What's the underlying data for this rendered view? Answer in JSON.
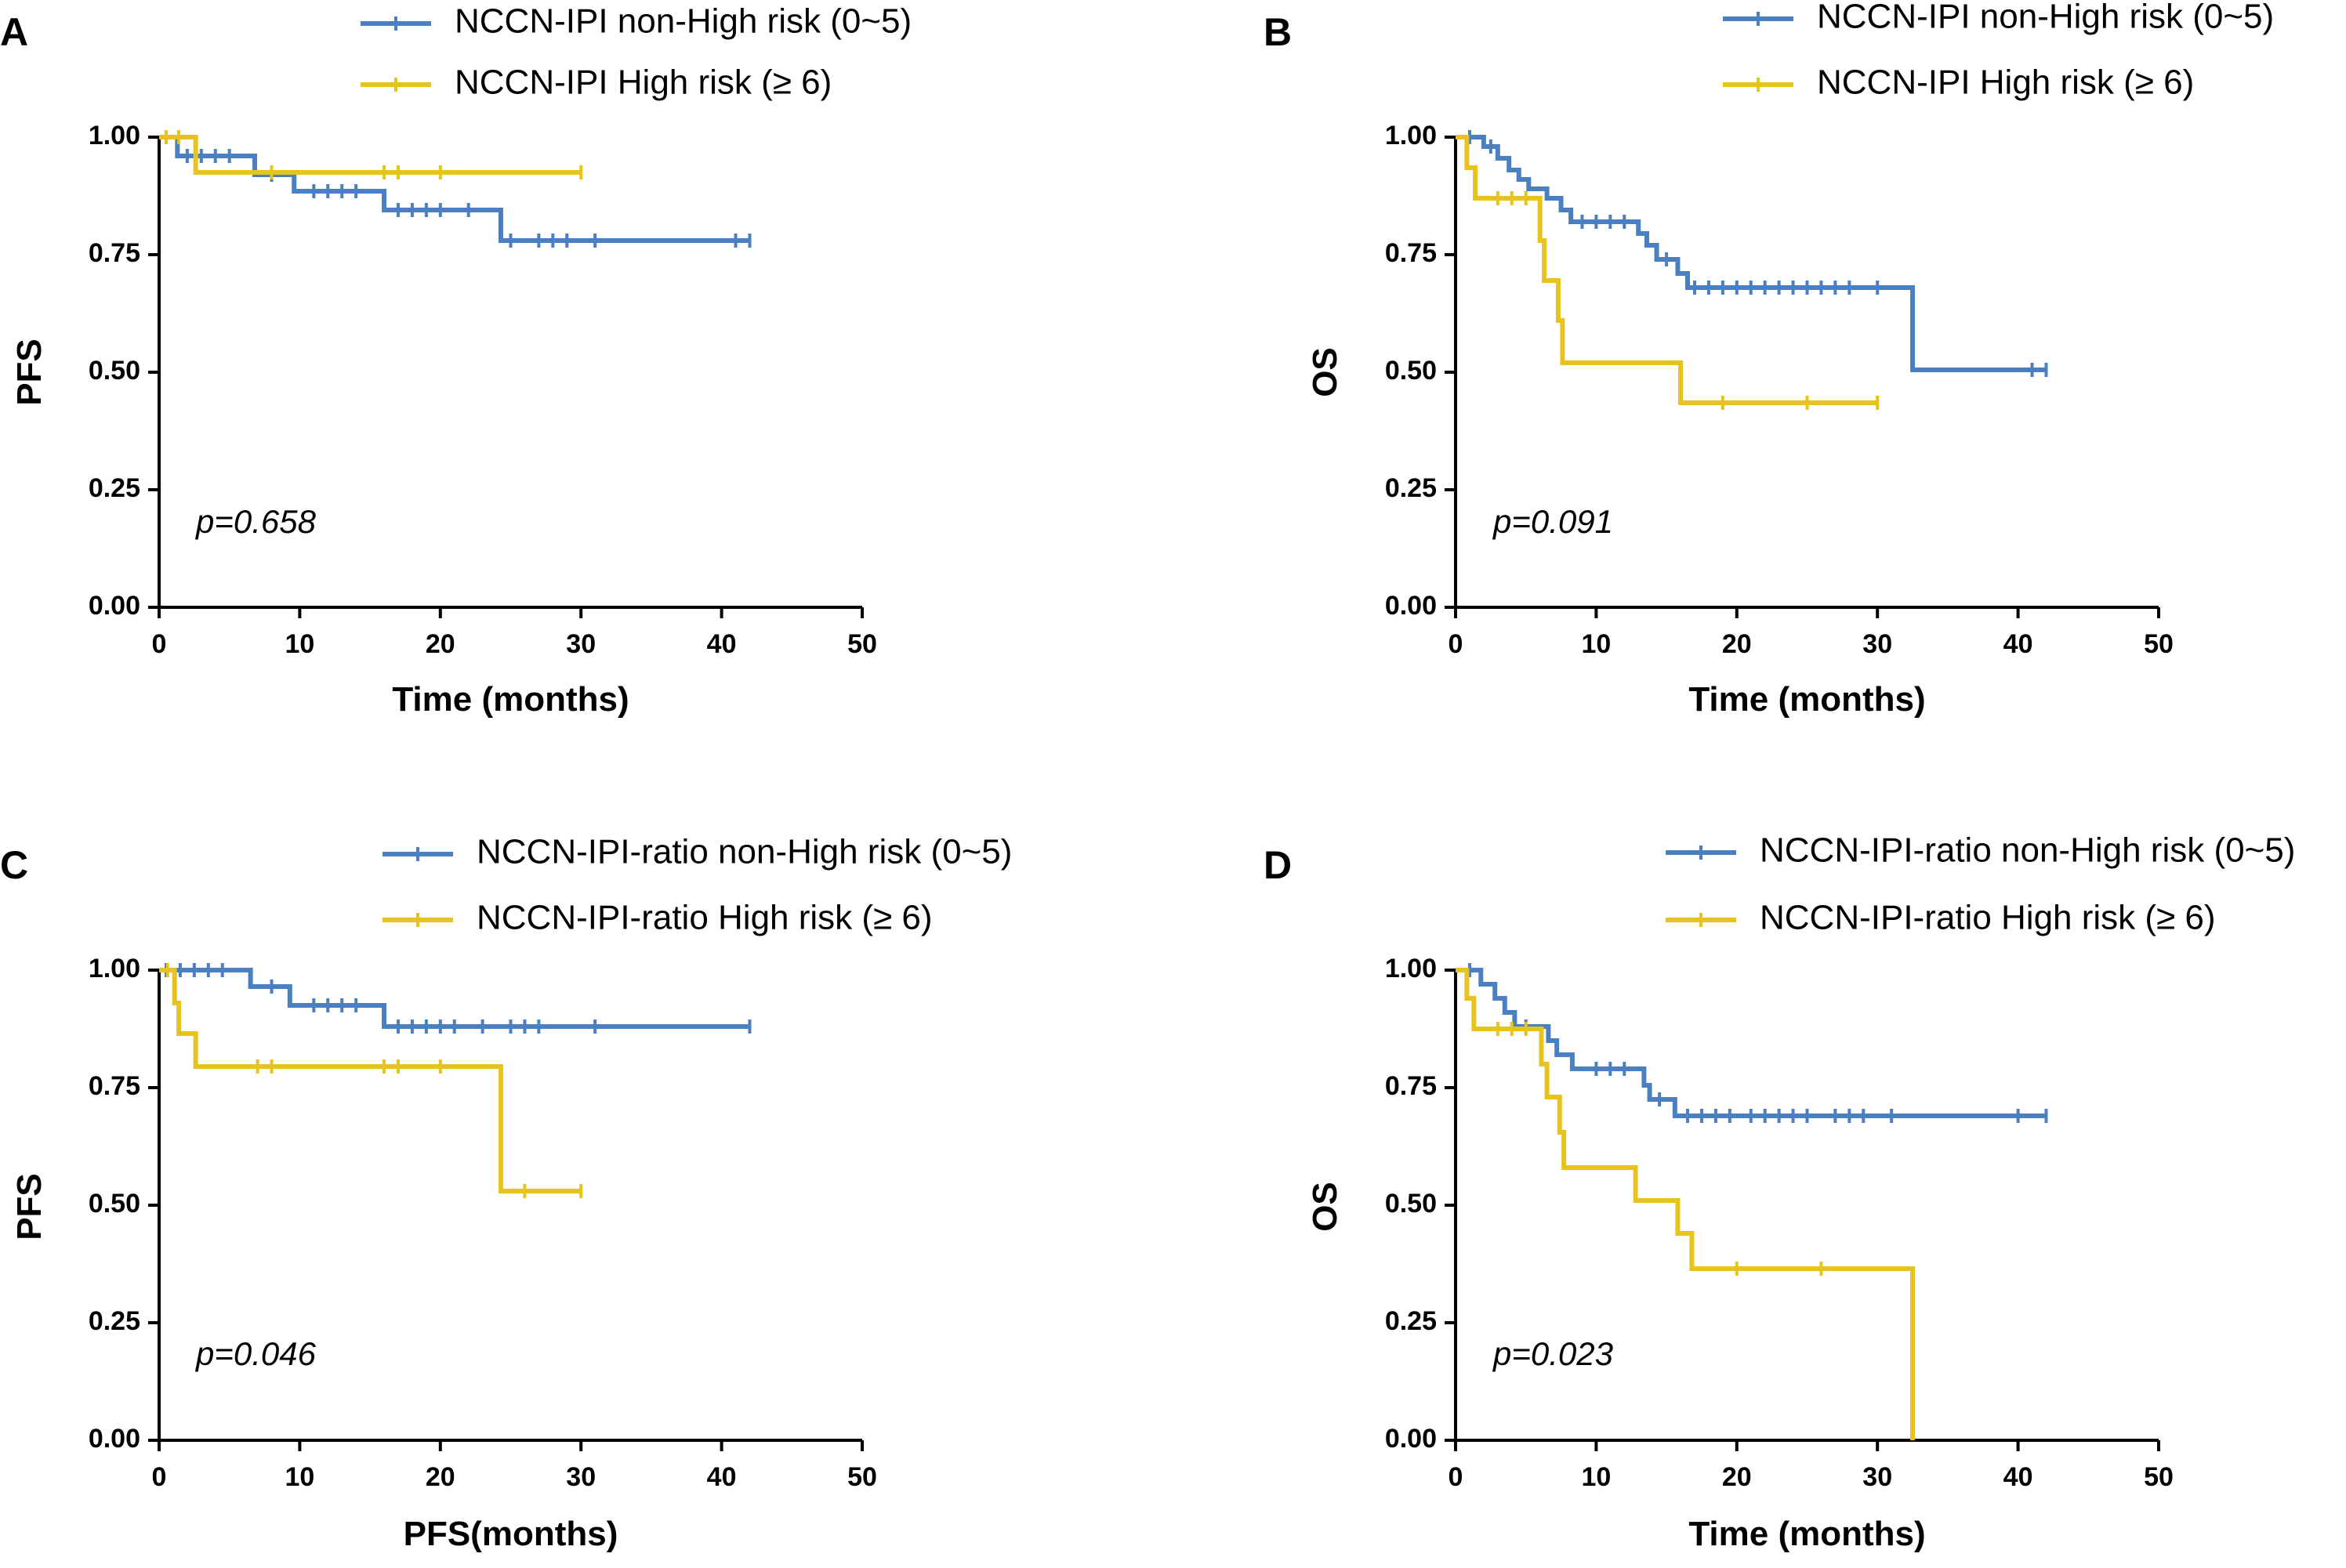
{
  "colors": {
    "blue": "#4a7fc1",
    "yellow": "#e8c21d",
    "axis": "#000000"
  },
  "chart_data": [
    {
      "type": "line",
      "panel": "A",
      "xlabel": "Time (months)",
      "ylabel": "PFS",
      "xlim": [
        0,
        50
      ],
      "ylim": [
        0,
        1
      ],
      "xticks": [
        "0",
        "10",
        "20",
        "30",
        "40",
        "50"
      ],
      "yticks": [
        "0.00",
        "0.25",
        "0.50",
        "0.75",
        "1.00"
      ],
      "pvalue": "p=0.658",
      "series": [
        {
          "name": "NCCN-IPI non-High risk (0~5)",
          "color": "blue",
          "steps": [
            [
              0,
              1.0
            ],
            [
              1.3,
              0.96
            ],
            [
              6.8,
              0.92
            ],
            [
              9.6,
              0.885
            ],
            [
              16,
              0.845
            ],
            [
              24.3,
              0.78
            ],
            [
              42,
              0.78
            ]
          ],
          "censors": [
            [
              0.5,
              1.0
            ],
            [
              2,
              0.96
            ],
            [
              3,
              0.96
            ],
            [
              4,
              0.96
            ],
            [
              5,
              0.96
            ],
            [
              8,
              0.92
            ],
            [
              11,
              0.885
            ],
            [
              12,
              0.885
            ],
            [
              13,
              0.885
            ],
            [
              14,
              0.885
            ],
            [
              17,
              0.845
            ],
            [
              18,
              0.845
            ],
            [
              19,
              0.845
            ],
            [
              20,
              0.845
            ],
            [
              22,
              0.845
            ],
            [
              25,
              0.78
            ],
            [
              27,
              0.78
            ],
            [
              28,
              0.78
            ],
            [
              29,
              0.78
            ],
            [
              31,
              0.78
            ],
            [
              41,
              0.78
            ],
            [
              42,
              0.78
            ]
          ]
        },
        {
          "name": "NCCN-IPI High risk (≥ 6)",
          "color": "yellow",
          "steps": [
            [
              0,
              1.0
            ],
            [
              2.6,
              0.925
            ],
            [
              30,
              0.925
            ]
          ],
          "censors": [
            [
              0.5,
              1.0
            ],
            [
              1.4,
              1.0
            ],
            [
              8,
              0.925
            ],
            [
              16,
              0.925
            ],
            [
              17,
              0.925
            ],
            [
              20,
              0.925
            ],
            [
              30,
              0.925
            ]
          ]
        }
      ]
    },
    {
      "type": "line",
      "panel": "B",
      "xlabel": "Time (months)",
      "ylabel": "OS",
      "xlim": [
        0,
        50
      ],
      "ylim": [
        0,
        1
      ],
      "xticks": [
        "0",
        "10",
        "20",
        "30",
        "40",
        "50"
      ],
      "yticks": [
        "0.00",
        "0.25",
        "0.50",
        "0.75",
        "1.00"
      ],
      "pvalue": "p=0.091",
      "series": [
        {
          "name": "NCCN-IPI non-High risk (0~5)",
          "color": "blue",
          "steps": [
            [
              0,
              1.0
            ],
            [
              2,
              0.98
            ],
            [
              3,
              0.955
            ],
            [
              3.8,
              0.93
            ],
            [
              4.5,
              0.91
            ],
            [
              5.2,
              0.89
            ],
            [
              6.5,
              0.87
            ],
            [
              7.5,
              0.845
            ],
            [
              8.2,
              0.82
            ],
            [
              13,
              0.795
            ],
            [
              13.6,
              0.77
            ],
            [
              14.3,
              0.74
            ],
            [
              15.8,
              0.71
            ],
            [
              16.5,
              0.68
            ],
            [
              32.5,
              0.505
            ],
            [
              42,
              0.505
            ]
          ],
          "censors": [
            [
              1,
              1.0
            ],
            [
              2.5,
              0.98
            ],
            [
              9,
              0.82
            ],
            [
              10,
              0.82
            ],
            [
              11,
              0.82
            ],
            [
              12,
              0.82
            ],
            [
              15,
              0.74
            ],
            [
              17,
              0.68
            ],
            [
              18,
              0.68
            ],
            [
              19,
              0.68
            ],
            [
              20,
              0.68
            ],
            [
              21,
              0.68
            ],
            [
              22,
              0.68
            ],
            [
              23,
              0.68
            ],
            [
              24,
              0.68
            ],
            [
              25,
              0.68
            ],
            [
              26,
              0.68
            ],
            [
              27,
              0.68
            ],
            [
              28,
              0.68
            ],
            [
              30,
              0.68
            ],
            [
              41,
              0.505
            ],
            [
              42,
              0.505
            ]
          ]
        },
        {
          "name": "NCCN-IPI High risk (≥ 6)",
          "color": "yellow",
          "steps": [
            [
              0,
              1.0
            ],
            [
              0.8,
              0.935
            ],
            [
              1.4,
              0.87
            ],
            [
              6,
              0.78
            ],
            [
              6.3,
              0.695
            ],
            [
              7.3,
              0.61
            ],
            [
              7.6,
              0.52
            ],
            [
              16,
              0.435
            ],
            [
              30,
              0.435
            ]
          ],
          "censors": [
            [
              3,
              0.87
            ],
            [
              4,
              0.87
            ],
            [
              5,
              0.87
            ],
            [
              19,
              0.435
            ],
            [
              25,
              0.435
            ],
            [
              30,
              0.435
            ]
          ]
        }
      ]
    },
    {
      "type": "line",
      "panel": "C",
      "xlabel": "PFS(months)",
      "ylabel": "PFS",
      "xlim": [
        0,
        50
      ],
      "ylim": [
        0,
        1
      ],
      "xticks": [
        "0",
        "10",
        "20",
        "30",
        "40",
        "50"
      ],
      "yticks": [
        "0.00",
        "0.25",
        "0.50",
        "0.75",
        "1.00"
      ],
      "pvalue": "p=0.046",
      "series": [
        {
          "name": "NCCN-IPI-ratio non-High risk (0~5)",
          "color": "blue",
          "steps": [
            [
              0,
              1.0
            ],
            [
              6.5,
              0.965
            ],
            [
              9.3,
              0.925
            ],
            [
              16,
              0.88
            ],
            [
              42,
              0.88
            ]
          ],
          "censors": [
            [
              0.5,
              1.0
            ],
            [
              1.5,
              1.0
            ],
            [
              2.5,
              1.0
            ],
            [
              3.5,
              1.0
            ],
            [
              4.5,
              1.0
            ],
            [
              8,
              0.965
            ],
            [
              11,
              0.925
            ],
            [
              12,
              0.925
            ],
            [
              13,
              0.925
            ],
            [
              14,
              0.925
            ],
            [
              17,
              0.88
            ],
            [
              18,
              0.88
            ],
            [
              19,
              0.88
            ],
            [
              20,
              0.88
            ],
            [
              21,
              0.88
            ],
            [
              23,
              0.88
            ],
            [
              25,
              0.88
            ],
            [
              26,
              0.88
            ],
            [
              27,
              0.88
            ],
            [
              31,
              0.88
            ],
            [
              42,
              0.88
            ]
          ]
        },
        {
          "name": "NCCN-IPI-ratio High risk (≥ 6)",
          "color": "yellow",
          "steps": [
            [
              0,
              1.0
            ],
            [
              1.1,
              0.93
            ],
            [
              1.4,
              0.865
            ],
            [
              2.6,
              0.795
            ],
            [
              24.3,
              0.53
            ],
            [
              30,
              0.53
            ]
          ],
          "censors": [
            [
              0.6,
              1.0
            ],
            [
              7,
              0.795
            ],
            [
              8,
              0.795
            ],
            [
              16,
              0.795
            ],
            [
              17,
              0.795
            ],
            [
              20,
              0.795
            ],
            [
              26,
              0.53
            ],
            [
              30,
              0.53
            ]
          ]
        }
      ]
    },
    {
      "type": "line",
      "panel": "D",
      "xlabel": "Time (months)",
      "ylabel": "OS",
      "xlim": [
        0,
        50
      ],
      "ylim": [
        0,
        1
      ],
      "xticks": [
        "0",
        "10",
        "20",
        "30",
        "40",
        "50"
      ],
      "yticks": [
        "0.00",
        "0.25",
        "0.50",
        "0.75",
        "1.00"
      ],
      "pvalue": "p=0.023",
      "series": [
        {
          "name": "NCCN-IPI-ratio non-High risk (0~5)",
          "color": "blue",
          "steps": [
            [
              0,
              1.0
            ],
            [
              1.8,
              0.97
            ],
            [
              2.8,
              0.94
            ],
            [
              3.5,
              0.91
            ],
            [
              4.2,
              0.88
            ],
            [
              6.6,
              0.85
            ],
            [
              7.2,
              0.82
            ],
            [
              8.3,
              0.79
            ],
            [
              13.4,
              0.755
            ],
            [
              13.8,
              0.725
            ],
            [
              15.6,
              0.69
            ],
            [
              42,
              0.69
            ]
          ],
          "censors": [
            [
              1,
              1.0
            ],
            [
              5,
              0.88
            ],
            [
              10,
              0.79
            ],
            [
              11,
              0.79
            ],
            [
              12,
              0.79
            ],
            [
              14.5,
              0.725
            ],
            [
              16.5,
              0.69
            ],
            [
              17.5,
              0.69
            ],
            [
              18.5,
              0.69
            ],
            [
              19.5,
              0.69
            ],
            [
              21,
              0.69
            ],
            [
              22,
              0.69
            ],
            [
              23,
              0.69
            ],
            [
              24,
              0.69
            ],
            [
              25,
              0.69
            ],
            [
              27,
              0.69
            ],
            [
              28,
              0.69
            ],
            [
              29,
              0.69
            ],
            [
              31,
              0.69
            ],
            [
              40,
              0.69
            ],
            [
              42,
              0.69
            ]
          ]
        },
        {
          "name": "NCCN-IPI-ratio High risk (≥ 6)",
          "color": "yellow",
          "steps": [
            [
              0,
              1.0
            ],
            [
              0.8,
              0.94
            ],
            [
              1.3,
              0.875
            ],
            [
              6.1,
              0.8
            ],
            [
              6.5,
              0.73
            ],
            [
              7.4,
              0.655
            ],
            [
              7.7,
              0.58
            ],
            [
              12.8,
              0.51
            ],
            [
              15.8,
              0.44
            ],
            [
              16.8,
              0.365
            ],
            [
              32.5,
              0.0
            ]
          ],
          "censors": [
            [
              3,
              0.875
            ],
            [
              4,
              0.875
            ],
            [
              5,
              0.875
            ],
            [
              20,
              0.365
            ],
            [
              26,
              0.365
            ]
          ]
        }
      ]
    }
  ]
}
